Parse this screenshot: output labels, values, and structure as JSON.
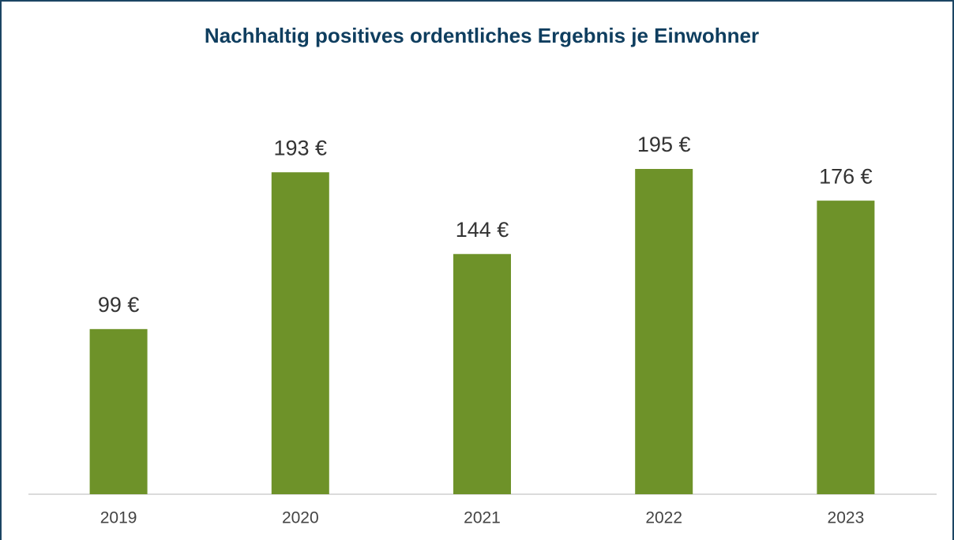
{
  "chart_data": {
    "type": "bar",
    "title": "Nachhaltig positives ordentliches Ergebnis je Einwohner",
    "categories": [
      "2019",
      "2020",
      "2021",
      "2022",
      "2023"
    ],
    "values": [
      99,
      193,
      144,
      195,
      176
    ],
    "value_labels": [
      "99 €",
      "193 €",
      "144 €",
      "195 €",
      "176 €"
    ],
    "color": "#6e9229"
  }
}
